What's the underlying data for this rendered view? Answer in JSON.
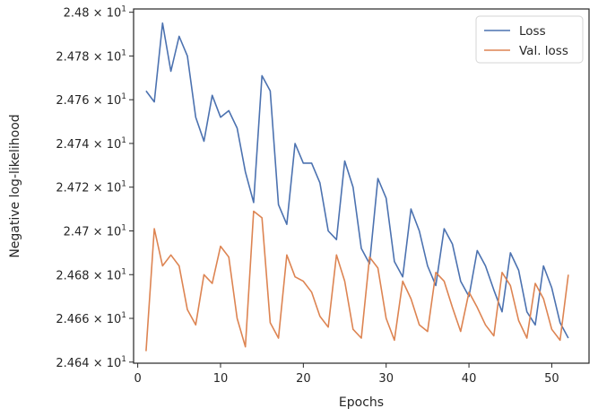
{
  "chart_data": {
    "type": "line",
    "title": "",
    "xlabel": "Epochs",
    "ylabel": "Negative log-likelihood",
    "xlim": [
      -0.5,
      54.5
    ],
    "ylim": [
      24.6395,
      24.8015
    ],
    "x_ticks": [
      0,
      10,
      20,
      30,
      40,
      50
    ],
    "y_ticks": [
      {
        "value": 24.64,
        "mantissa": "2.464",
        "base": "10",
        "exp": "1"
      },
      {
        "value": 24.66,
        "mantissa": "2.466",
        "base": "10",
        "exp": "1"
      },
      {
        "value": 24.68,
        "mantissa": "2.468",
        "base": "10",
        "exp": "1"
      },
      {
        "value": 24.7,
        "mantissa": "2.47",
        "base": "10",
        "exp": "1"
      },
      {
        "value": 24.72,
        "mantissa": "2.472",
        "base": "10",
        "exp": "1"
      },
      {
        "value": 24.74,
        "mantissa": "2.474",
        "base": "10",
        "exp": "1"
      },
      {
        "value": 24.76,
        "mantissa": "2.476",
        "base": "10",
        "exp": "1"
      },
      {
        "value": 24.78,
        "mantissa": "2.478",
        "base": "10",
        "exp": "1"
      },
      {
        "value": 24.8,
        "mantissa": "2.48",
        "base": "10",
        "exp": "1"
      }
    ],
    "grid": false,
    "legend_position": "top-right",
    "x": [
      1,
      2,
      3,
      4,
      5,
      6,
      7,
      8,
      9,
      10,
      11,
      12,
      13,
      14,
      15,
      16,
      17,
      18,
      19,
      20,
      21,
      22,
      23,
      24,
      25,
      26,
      27,
      28,
      29,
      30,
      31,
      32,
      33,
      34,
      35,
      36,
      37,
      38,
      39,
      40,
      41,
      42,
      43,
      44,
      45,
      46,
      47,
      48,
      49,
      50,
      51,
      52
    ],
    "series": [
      {
        "name": "Loss",
        "color": "#4c72b0",
        "values": [
          24.764,
          24.759,
          24.795,
          24.773,
          24.789,
          24.78,
          24.752,
          24.741,
          24.762,
          24.752,
          24.755,
          24.747,
          24.727,
          24.713,
          24.771,
          24.764,
          24.712,
          24.703,
          24.74,
          24.731,
          24.731,
          24.722,
          24.7,
          24.696,
          24.732,
          24.72,
          24.692,
          24.685,
          24.724,
          24.715,
          24.686,
          24.679,
          24.71,
          24.7,
          24.684,
          24.675,
          24.701,
          24.694,
          24.677,
          24.67,
          24.691,
          24.684,
          24.673,
          24.663,
          24.69,
          24.682,
          24.663,
          24.657,
          24.684,
          24.674,
          24.658,
          24.651
        ]
      },
      {
        "name": "Val. loss",
        "color": "#dd8452",
        "values": [
          24.645,
          24.701,
          24.684,
          24.689,
          24.684,
          24.664,
          24.657,
          24.68,
          24.676,
          24.693,
          24.688,
          24.66,
          24.647,
          24.709,
          24.706,
          24.658,
          24.651,
          24.689,
          24.679,
          24.677,
          24.672,
          24.661,
          24.656,
          24.689,
          24.677,
          24.655,
          24.651,
          24.688,
          24.683,
          24.66,
          24.65,
          24.677,
          24.669,
          24.657,
          24.654,
          24.681,
          24.677,
          24.665,
          24.654,
          24.672,
          24.665,
          24.657,
          24.652,
          24.681,
          24.675,
          24.659,
          24.651,
          24.676,
          24.669,
          24.655,
          24.65,
          24.68
        ]
      }
    ]
  }
}
